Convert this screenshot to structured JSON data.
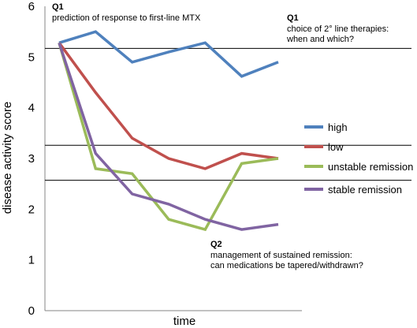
{
  "chart_data": {
    "type": "line",
    "xlabel": "time",
    "ylabel": "disease activity score",
    "ylim": [
      0,
      6
    ],
    "yticks": [
      "0",
      "1",
      "2",
      "3",
      "4",
      "5",
      "6"
    ],
    "x": [
      0,
      1,
      2,
      3,
      4,
      5,
      6
    ],
    "reference_lines": [
      5.17,
      3.26,
      2.57
    ],
    "legend_position": "right",
    "series": [
      {
        "name": "high",
        "color": "#4F81BD",
        "values": [
          5.28,
          5.5,
          4.9,
          5.1,
          5.28,
          4.62,
          4.9
        ]
      },
      {
        "name": "low",
        "color": "#C0504D",
        "values": [
          5.28,
          4.3,
          3.4,
          3.0,
          2.8,
          3.1,
          3.0
        ]
      },
      {
        "name": "unstable remission",
        "color": "#9BBB59",
        "values": [
          5.28,
          2.8,
          2.7,
          1.8,
          1.6,
          2.9,
          3.0
        ]
      },
      {
        "name": "stable remission",
        "color": "#8064A2",
        "values": [
          5.28,
          3.1,
          2.3,
          2.1,
          1.8,
          1.6,
          1.7
        ]
      }
    ],
    "annotations": [
      {
        "id": "q1a",
        "head": "Q1",
        "lines": [
          "prediction of response to first-line MTX"
        ]
      },
      {
        "id": "q1b",
        "head": "Q1",
        "lines": [
          "choice of 2° line therapies:",
          "when and which?"
        ]
      },
      {
        "id": "q2",
        "head": "Q2",
        "lines": [
          "management of  sustained remission:",
          "can medications be tapered/withdrawn?"
        ]
      }
    ]
  }
}
